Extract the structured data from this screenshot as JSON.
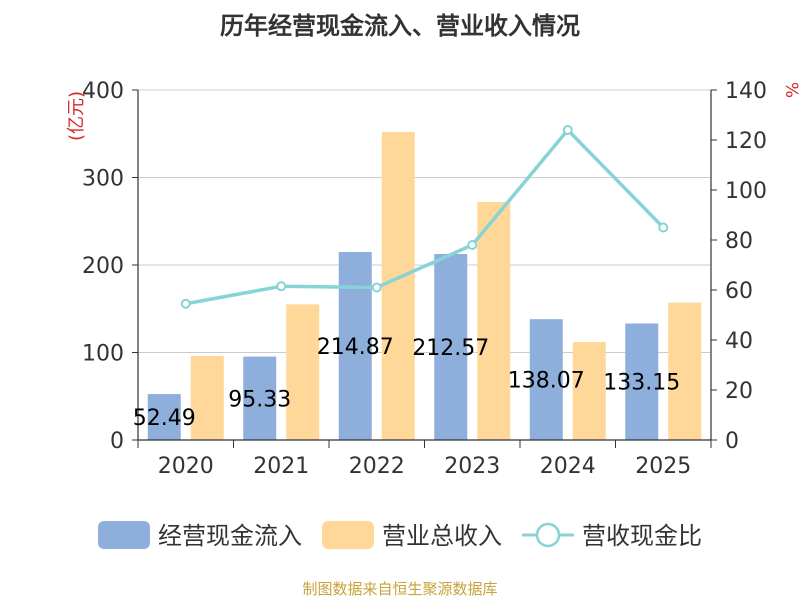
{
  "chart_data": {
    "type": "bar",
    "title": "历年经营现金流入、营业收入情况",
    "left_unit": "(亿元)",
    "right_unit": "%",
    "categories": [
      "2020",
      "2021",
      "2022",
      "2023",
      "2024",
      "2025"
    ],
    "series": [
      {
        "name": "经营现金流入",
        "type": "bar",
        "axis": "left",
        "color": "#8eaedb",
        "values": [
          52.49,
          95.33,
          214.87,
          212.57,
          138.07,
          133.15
        ],
        "labels": [
          "52.49",
          "95.33",
          "214.87",
          "212.57",
          "138.07",
          "133.15"
        ]
      },
      {
        "name": "营业总收入",
        "type": "bar",
        "axis": "left",
        "color": "#ffd899",
        "values": [
          96,
          155,
          352,
          272,
          112,
          157
        ]
      },
      {
        "name": "营收现金比",
        "type": "line",
        "axis": "right",
        "color": "#87d3d6",
        "values": [
          54.5,
          61.5,
          61.0,
          78.0,
          124.0,
          85.0
        ]
      }
    ],
    "left_axis": {
      "min": 0,
      "max": 400,
      "ticks": [
        0,
        100,
        200,
        300,
        400
      ]
    },
    "right_axis": {
      "min": 0,
      "max": 140,
      "ticks": [
        0,
        20,
        40,
        60,
        80,
        100,
        120,
        140
      ]
    },
    "grid": true,
    "legend_position": "bottom"
  },
  "source": "制图数据来自恒生聚源数据库"
}
